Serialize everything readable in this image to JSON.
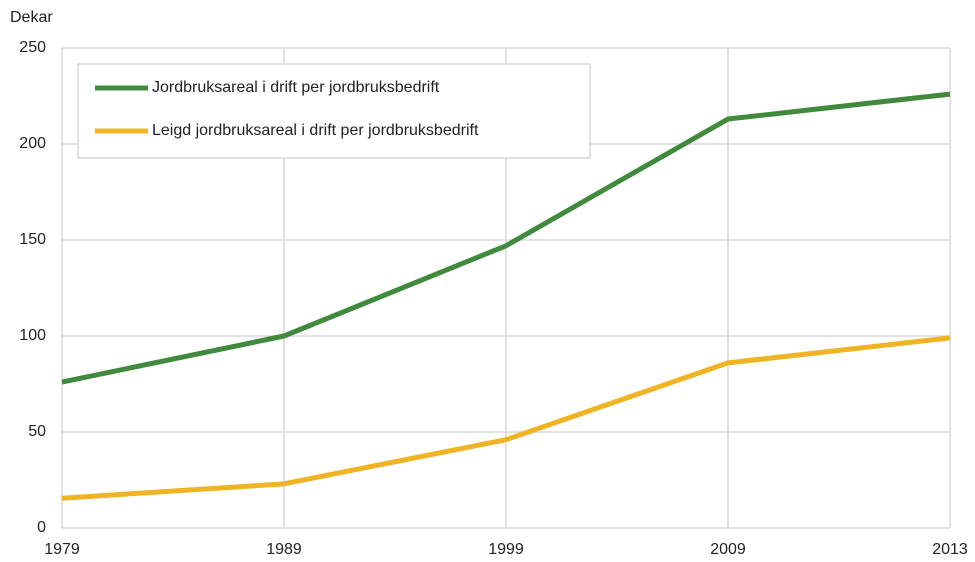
{
  "chart_data": {
    "type": "line",
    "y_label": "Dekar",
    "categories": [
      "1979",
      "1989",
      "1999",
      "2009",
      "2013"
    ],
    "series": [
      {
        "name": "Jordbruksareal i drift per jordbruksbedrift",
        "color": "#3f8a3c",
        "values": [
          76,
          100,
          147,
          213,
          226
        ]
      },
      {
        "name": "Leigd jordbruksareal i drift per jordbruksbedrift",
        "color": "#f0b323",
        "values": [
          15.5,
          23,
          46,
          86,
          99
        ]
      }
    ],
    "ylim": [
      0,
      250
    ],
    "yticks": [
      0,
      50,
      100,
      150,
      200,
      250
    ],
    "grid": true,
    "legend": "upper left"
  }
}
